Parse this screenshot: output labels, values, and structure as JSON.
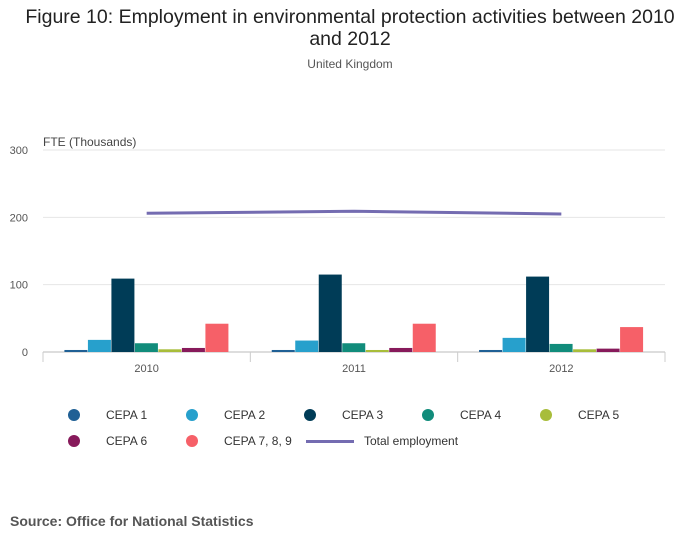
{
  "header": {
    "title": "Figure 10: Employment in environmental protection activities between 2010 and 2012",
    "subtitle": "United Kingdom"
  },
  "chart_data": {
    "type": "bar",
    "categories": [
      "2010",
      "2011",
      "2012"
    ],
    "ylabel": "FTE (Thousands)",
    "ylim": [
      0,
      300
    ],
    "yticks": [
      0,
      100,
      200,
      300
    ],
    "grid": true,
    "series": [
      {
        "name": "CEPA 1",
        "kind": "bar",
        "color": "#206095",
        "values": [
          3,
          3,
          3
        ]
      },
      {
        "name": "CEPA 2",
        "kind": "bar",
        "color": "#27A0CC",
        "values": [
          18,
          17,
          21
        ]
      },
      {
        "name": "CEPA 3",
        "kind": "bar",
        "color": "#003C57",
        "values": [
          109,
          115,
          112
        ]
      },
      {
        "name": "CEPA 4",
        "kind": "bar",
        "color": "#118C7B",
        "values": [
          13,
          13,
          12
        ]
      },
      {
        "name": "CEPA 5",
        "kind": "bar",
        "color": "#A8BD3A",
        "values": [
          4,
          3,
          4
        ]
      },
      {
        "name": "CEPA 6",
        "kind": "bar",
        "color": "#871A5B",
        "values": [
          6,
          6,
          5
        ]
      },
      {
        "name": "CEPA 7, 8, 9",
        "kind": "bar",
        "color": "#F66068",
        "values": [
          42,
          42,
          37
        ]
      },
      {
        "name": "Total employment",
        "kind": "line",
        "color": "#746CB1",
        "values": [
          206,
          209,
          205
        ]
      }
    ]
  },
  "footer": {
    "source": "Source: Office for National Statistics"
  }
}
